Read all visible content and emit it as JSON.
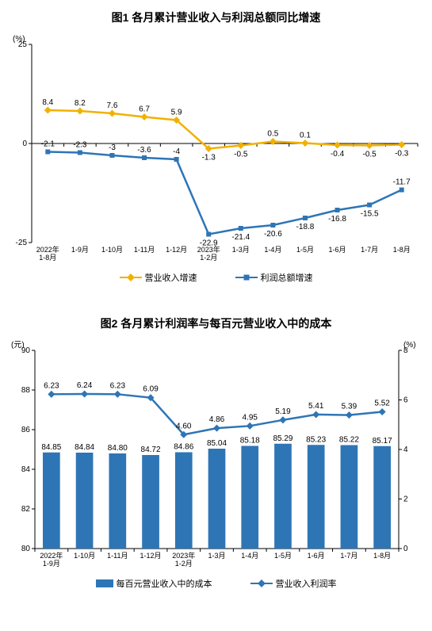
{
  "chart1": {
    "title": "图1 各月累计营业收入与利润总额同比增速",
    "y_unit": "(%)",
    "ylim": [
      -25,
      25
    ],
    "yticks": [
      -25,
      0,
      25
    ],
    "categories": [
      "2022年\n1-8月",
      "1-9月",
      "1-10月",
      "1-11月",
      "1-12月",
      "2023年\n1-2月",
      "1-3月",
      "1-4月",
      "1-5月",
      "1-6月",
      "1-7月",
      "1-8月"
    ],
    "series": [
      {
        "name": "营业收入增速",
        "color": "#f2b100",
        "values": [
          8.4,
          8.2,
          7.6,
          6.7,
          5.9,
          -1.3,
          -0.5,
          0.5,
          0.1,
          -0.4,
          -0.5,
          -0.3
        ],
        "label_pos": [
          "above",
          "above",
          "above",
          "above",
          "above",
          "below",
          "below",
          "above",
          "above",
          "below",
          "below",
          "below"
        ],
        "marker": "diamond",
        "line_width": 2.5
      },
      {
        "name": "利润总额增速",
        "color": "#2e75b6",
        "values": [
          -2.1,
          -2.3,
          -3.0,
          -3.6,
          -4.0,
          -22.9,
          -21.4,
          -20.6,
          -18.8,
          -16.8,
          -15.5,
          -11.7
        ],
        "label_pos": [
          "above",
          "above",
          "above",
          "above",
          "above",
          "below",
          "below",
          "below",
          "below",
          "below",
          "below",
          "above"
        ],
        "marker": "square",
        "line_width": 2.5
      }
    ],
    "legend": [
      "营业收入增速",
      "利润总额增速"
    ]
  },
  "chart2": {
    "title": "图2 各月累计利润率与每百元营业收入中的成本",
    "y_left_unit": "(元)",
    "y_right_unit": "(%)",
    "y_left": {
      "lim": [
        80,
        90
      ],
      "ticks": [
        80,
        82,
        84,
        86,
        88,
        90
      ]
    },
    "y_right": {
      "lim": [
        0,
        8
      ],
      "ticks": [
        0,
        2,
        4,
        6,
        8
      ]
    },
    "categories": [
      "2022年\n1-9月",
      "1-10月",
      "1-11月",
      "1-12月",
      "2023年\n1-2月",
      "1-3月",
      "1-4月",
      "1-5月",
      "1-6月",
      "1-7月",
      "1-8月"
    ],
    "bar_series": {
      "name": "每百元营业收入中的成本",
      "color": "#2e75b6",
      "values": [
        84.85,
        84.84,
        84.8,
        84.72,
        84.86,
        85.04,
        85.18,
        85.29,
        85.23,
        85.22,
        85.17
      ],
      "bar_width": 0.52
    },
    "line_series": {
      "name": "营业收入利润率",
      "color": "#2e75b6",
      "values": [
        6.23,
        6.24,
        6.23,
        6.09,
        4.6,
        4.86,
        4.95,
        5.19,
        5.41,
        5.39,
        5.52
      ],
      "marker": "diamond",
      "line_width": 2.5
    },
    "legend": [
      "每百元营业收入中的成本",
      "营业收入利润率"
    ]
  },
  "colors": {
    "axis": "#000000",
    "grid": "#000000",
    "background": "#ffffff"
  }
}
